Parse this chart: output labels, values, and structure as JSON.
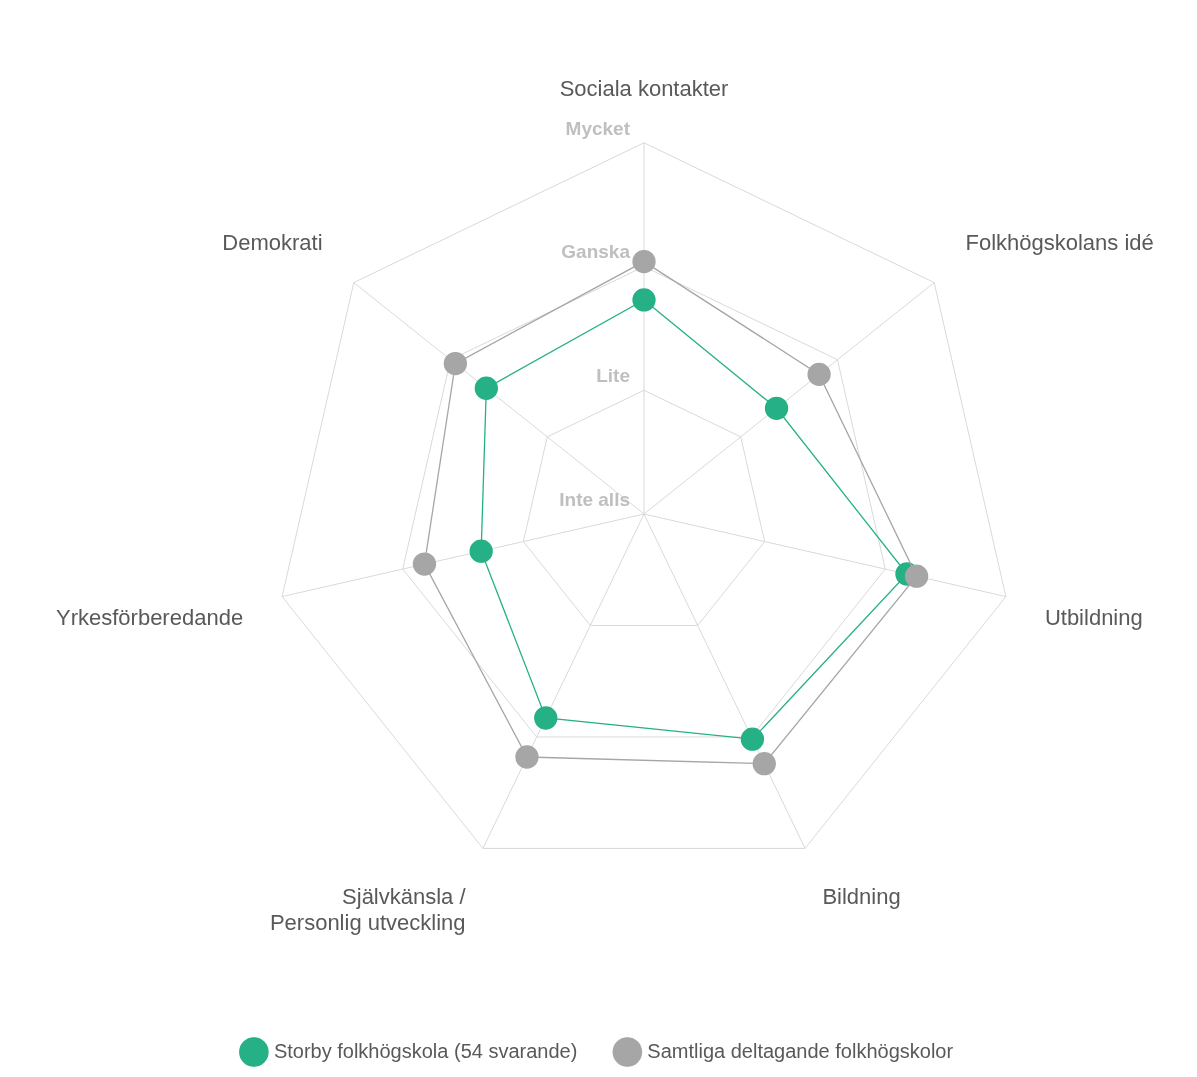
{
  "chart_data": {
    "type": "radar",
    "categories": [
      "Sociala kontakter",
      "Folkhögskolans idé",
      "Utbildning",
      "Bildning",
      "Självkänsla / Personlig utveckling",
      "Yrkesförberedande",
      "Demokrati"
    ],
    "series": [
      {
        "name": "Storby folkhögskola (54 svarande)",
        "color": "#26b085",
        "values": [
          2.73,
          2.37,
          3.18,
          3.02,
          2.83,
          2.35,
          2.63
        ]
      },
      {
        "name": "Samtliga deltagande folkhögskolor",
        "color": "#a6a6a6",
        "values": [
          3.04,
          2.81,
          3.26,
          3.24,
          3.18,
          2.82,
          2.95
        ]
      }
    ],
    "ylim": [
      1,
      4
    ],
    "yticks": [
      {
        "value": 1,
        "label": "Inte alls"
      },
      {
        "value": 2,
        "label": "Lite"
      },
      {
        "value": 3,
        "label": "Ganska"
      },
      {
        "value": 4,
        "label": "Mycket"
      }
    ],
    "grid": true,
    "legend": "bottom",
    "marker": "circle",
    "line_style": "solid"
  }
}
